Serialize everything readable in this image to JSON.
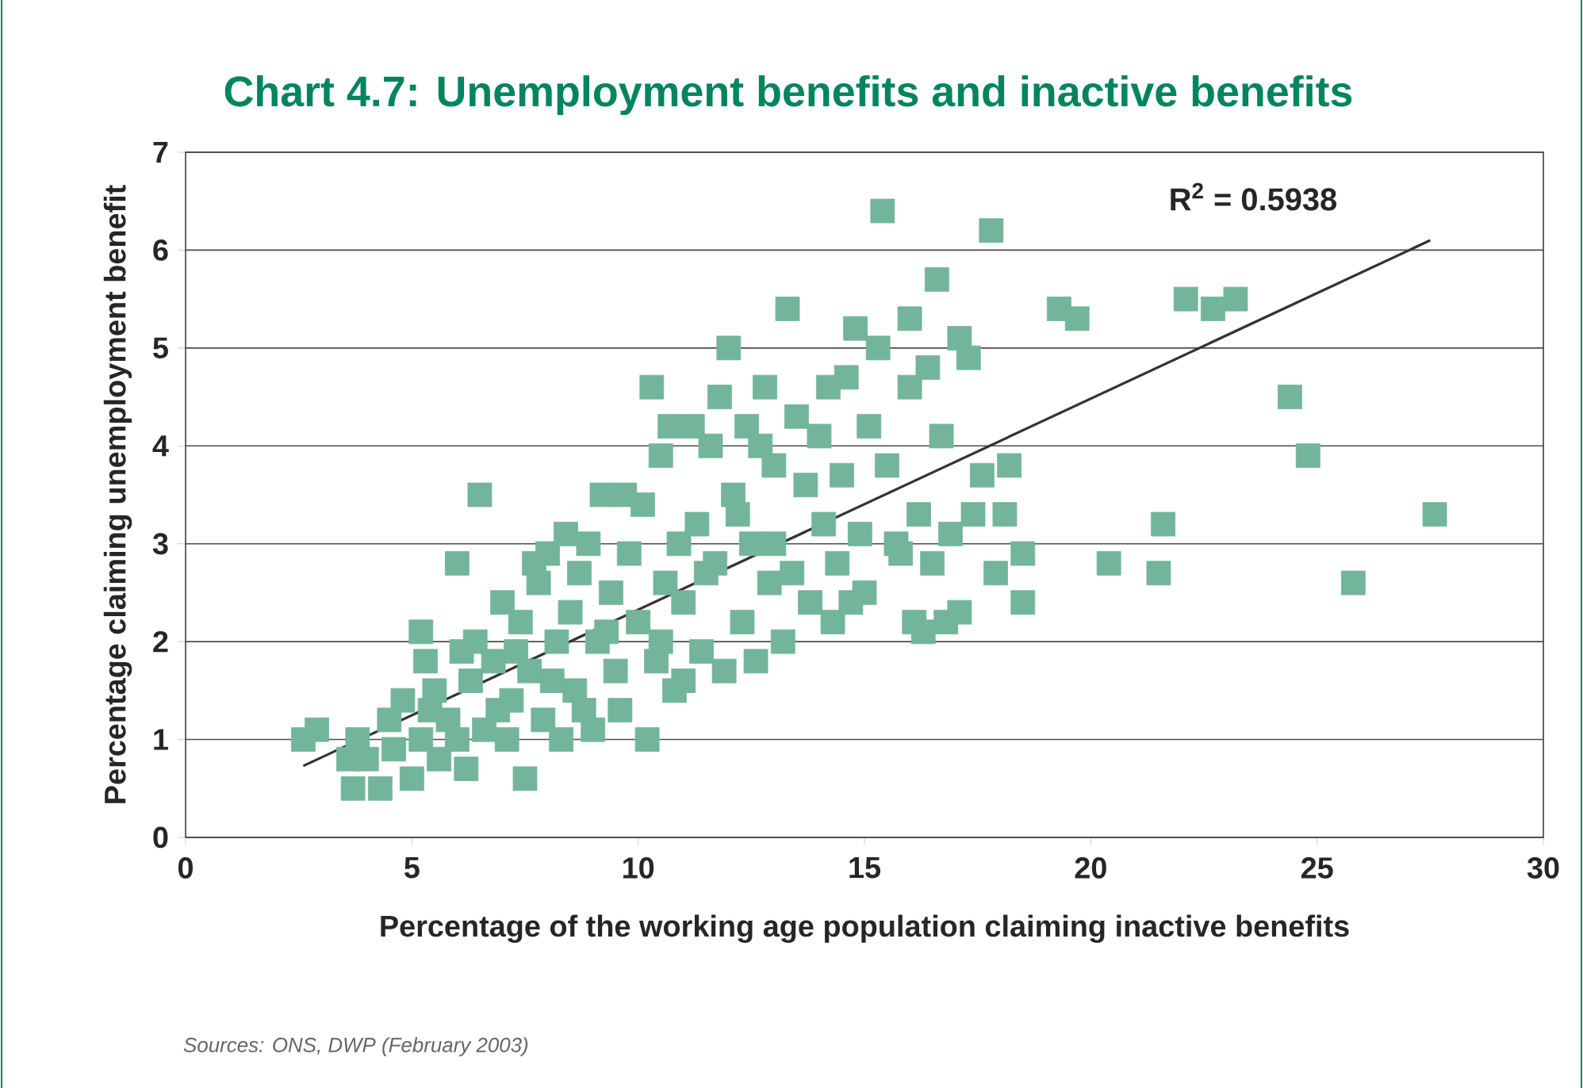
{
  "chart_data": {
    "type": "scatter",
    "title": "Chart 4.7: Unemployment benefits and inactive benefits",
    "xlabel": "Percentage of the working age population claiming inactive benefits",
    "ylabel": "Percentage claiming unemployment benefit",
    "xlim": [
      0,
      30
    ],
    "ylim": [
      0,
      7
    ],
    "xticks": [
      0,
      5,
      10,
      15,
      20,
      25,
      30
    ],
    "yticks": [
      0,
      1,
      2,
      3,
      4,
      5,
      6,
      7
    ],
    "grid": "y",
    "annotations": [
      "R$^{2}$ = 0.5938",
      "Sources: ONS, DWP (February 2003)"
    ],
    "series": [
      {
        "color": "#72b59a",
        "marker": "square",
        "x": [
          2.6,
          2.9,
          3.6,
          3.7,
          3.8,
          4.3,
          4.0,
          4.5,
          4.8,
          5.0,
          5.2,
          5.2,
          5.3,
          5.5,
          5.6,
          5.8,
          6.0,
          6.2,
          6.3,
          6.4,
          6.5,
          6.6,
          6.8,
          7.0,
          7.1,
          7.2,
          7.4,
          7.5,
          7.6,
          7.8,
          7.9,
          8.0,
          8.2,
          8.3,
          8.5,
          8.6,
          8.7,
          8.9,
          9.0,
          9.1,
          9.2,
          9.4,
          9.5,
          9.6,
          9.7,
          9.8,
          10.0,
          10.1,
          10.2,
          10.3,
          10.4,
          10.5,
          10.6,
          10.7,
          10.8,
          10.9,
          11.0,
          11.2,
          11.3,
          11.4,
          11.6,
          11.7,
          11.8,
          11.9,
          12.0,
          12.1,
          12.3,
          12.4,
          12.5,
          12.6,
          12.7,
          12.8,
          12.9,
          13.0,
          13.2,
          13.3,
          13.4,
          13.5,
          13.7,
          13.8,
          14.0,
          14.1,
          14.2,
          14.3,
          14.4,
          14.5,
          14.6,
          14.7,
          14.8,
          14.9,
          15.0,
          15.1,
          15.3,
          15.4,
          15.5,
          15.7,
          15.8,
          16.0,
          16.0,
          16.1,
          16.2,
          16.3,
          16.4,
          16.5,
          16.6,
          16.7,
          16.8,
          16.9,
          17.1,
          17.1,
          17.3,
          17.4,
          17.6,
          17.8,
          17.9,
          18.1,
          18.2,
          18.5,
          18.5,
          19.3,
          19.7,
          20.4,
          21.5,
          21.6,
          22.1,
          22.7,
          23.2,
          24.4,
          24.8,
          25.8,
          27.6,
          4.6,
          5.4,
          6.0,
          6.9,
          7.3,
          8.1,
          8.8,
          9.3,
          10.5,
          11.0,
          11.5,
          12.2,
          13.0,
          6.1,
          7.7,
          8.4
        ],
        "values": [
          1.0,
          1.1,
          0.8,
          0.5,
          1.0,
          0.5,
          0.8,
          1.2,
          1.4,
          0.6,
          1.0,
          2.1,
          1.8,
          1.5,
          0.8,
          1.2,
          2.8,
          0.7,
          1.6,
          2.0,
          3.5,
          1.1,
          1.8,
          2.4,
          1.0,
          1.4,
          2.2,
          0.6,
          1.7,
          2.6,
          1.2,
          2.9,
          2.0,
          1.0,
          2.3,
          1.5,
          2.7,
          3.0,
          1.1,
          2.0,
          3.5,
          2.5,
          1.7,
          1.3,
          3.5,
          2.9,
          2.2,
          3.4,
          1.0,
          4.6,
          1.8,
          3.9,
          2.6,
          4.2,
          1.5,
          3.0,
          2.4,
          4.2,
          3.2,
          1.9,
          4.0,
          2.8,
          4.5,
          1.7,
          5.0,
          3.5,
          2.2,
          4.2,
          3.0,
          1.8,
          4.0,
          4.6,
          2.6,
          3.8,
          2.0,
          5.4,
          2.7,
          4.3,
          3.6,
          2.4,
          4.1,
          3.2,
          4.6,
          2.2,
          2.8,
          3.7,
          4.7,
          2.4,
          5.2,
          3.1,
          2.5,
          4.2,
          5.0,
          6.4,
          3.8,
          3.0,
          2.9,
          5.3,
          4.6,
          2.2,
          3.3,
          2.1,
          4.8,
          2.8,
          5.7,
          4.1,
          2.2,
          3.1,
          5.1,
          2.3,
          4.9,
          3.3,
          3.7,
          6.2,
          2.7,
          3.3,
          3.8,
          2.4,
          2.9,
          5.4,
          5.3,
          2.8,
          2.7,
          3.2,
          5.5,
          5.4,
          5.5,
          4.5,
          3.9,
          2.6,
          3.3,
          0.9,
          1.3,
          1.0,
          1.3,
          1.9,
          1.6,
          1.3,
          2.1,
          2.0,
          1.6,
          2.7,
          3.3,
          3.0,
          1.9,
          2.8,
          3.1
        ]
      },
      {
        "type": "line",
        "color": "#333333",
        "x": [
          2.6,
          27.5
        ],
        "values": [
          0.73,
          6.1
        ]
      }
    ]
  }
}
